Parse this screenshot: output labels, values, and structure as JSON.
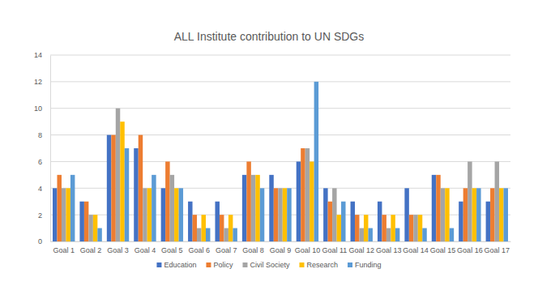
{
  "chart_data": {
    "type": "bar",
    "title": "ALL Institute contribution to UN SDGs",
    "categories": [
      "Goal 1",
      "Goal 2",
      "Goal 3",
      "Goal 4",
      "Goal 5",
      "Goal 6",
      "Goal 7",
      "Goal 8",
      "Goal 9",
      "Goal 10",
      "Goal 11",
      "Goal 12",
      "Goal 13",
      "Goal 14",
      "Goal 15",
      "Goal 16",
      "Goal 17"
    ],
    "series": [
      {
        "name": "Education",
        "color": "#4472c4",
        "values": [
          4,
          3,
          8,
          7,
          4,
          3,
          3,
          5,
          5,
          6,
          4,
          3,
          3,
          4,
          5,
          3,
          3
        ]
      },
      {
        "name": "Policy",
        "color": "#ed7d31",
        "values": [
          5,
          3,
          8,
          8,
          6,
          2,
          2,
          6,
          4,
          7,
          3,
          2,
          2,
          2,
          5,
          4,
          4
        ]
      },
      {
        "name": "Civil Society",
        "color": "#a5a5a5",
        "values": [
          4,
          2,
          10,
          4,
          5,
          1,
          1,
          5,
          4,
          7,
          4,
          1,
          1,
          2,
          4,
          6,
          6
        ]
      },
      {
        "name": "Research",
        "color": "#ffc000",
        "values": [
          4,
          2,
          9,
          4,
          4,
          2,
          2,
          5,
          4,
          6,
          2,
          2,
          2,
          2,
          4,
          4,
          4
        ]
      },
      {
        "name": "Funding",
        "color": "#5b9bd5",
        "values": [
          5,
          1,
          7,
          5,
          4,
          1,
          1,
          4,
          4,
          12,
          3,
          1,
          1,
          1,
          1,
          4,
          4
        ]
      }
    ],
    "ylim": [
      0,
      14
    ],
    "yticks": [
      0,
      2,
      4,
      6,
      8,
      10,
      12,
      14
    ],
    "grid": true,
    "legend": "bottom"
  }
}
